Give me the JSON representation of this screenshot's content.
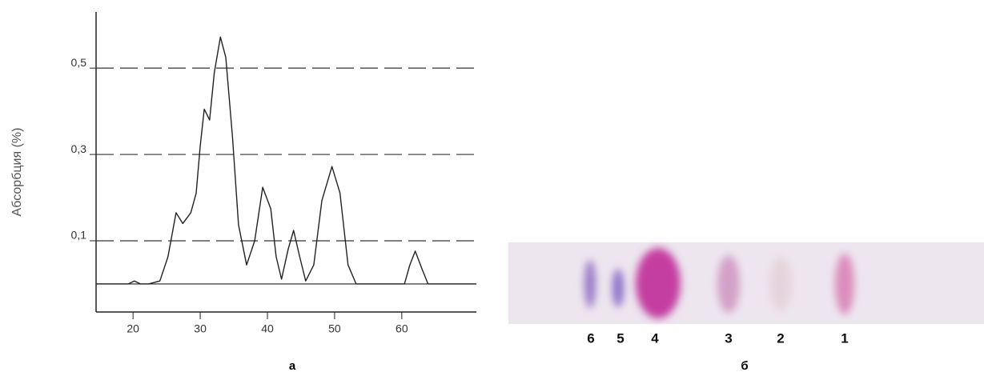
{
  "chart_data": {
    "type": "line",
    "ylabel": "Абсорбция (%)",
    "caption": "а",
    "x": [
      14.5,
      19.3,
      20.2,
      21.1,
      22.3,
      24,
      25.2,
      26.4,
      27.4,
      28.6,
      29.4,
      30,
      30.6,
      31.4,
      32.1,
      33,
      33.8,
      34.8,
      35.7,
      36.9,
      38.1,
      39.3,
      40.5,
      41.3,
      42.1,
      43.1,
      43.9,
      44.8,
      45.7,
      46.9,
      48.1,
      49.6,
      50.8,
      52,
      53.2,
      60.4,
      61.2,
      62,
      63,
      63.9,
      71.1
    ],
    "values": [
      0,
      0,
      0.007,
      0,
      0,
      0.007,
      0.063,
      0.165,
      0.14,
      0.165,
      0.21,
      0.32,
      0.405,
      0.38,
      0.49,
      0.572,
      0.525,
      0.34,
      0.137,
      0.044,
      0.1,
      0.224,
      0.174,
      0.063,
      0.011,
      0.081,
      0.124,
      0.063,
      0.007,
      0.044,
      0.193,
      0.272,
      0.211,
      0.044,
      0,
      0,
      0.044,
      0.076,
      0.035,
      0,
      0
    ],
    "color": "#222222",
    "xlim": [
      14.5,
      71.1
    ],
    "xticks": [
      20,
      30,
      40,
      50,
      60
    ],
    "ylim": [
      -0.065,
      0.63
    ],
    "yticks": [
      {
        "value": 0.1,
        "label": "0,1"
      },
      {
        "value": 0.3,
        "label": "0,3"
      },
      {
        "value": 0.5,
        "label": "0,5"
      }
    ],
    "grid": true
  },
  "photo": {
    "lane_labels": [
      "6",
      "5",
      "4",
      "3",
      "2",
      "1"
    ],
    "caption": "б"
  }
}
